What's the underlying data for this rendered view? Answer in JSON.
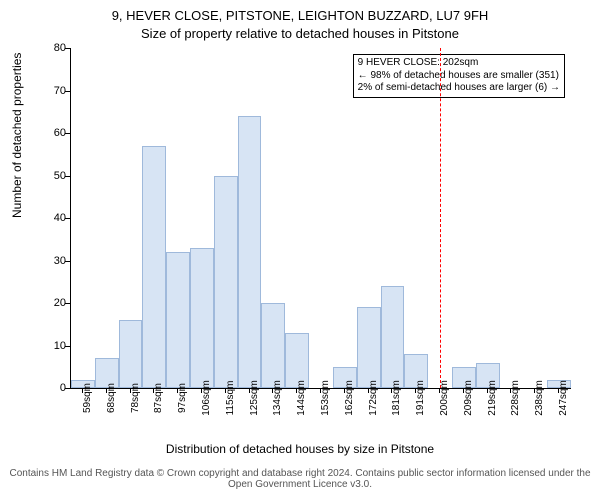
{
  "title_line1": "9, HEVER CLOSE, PITSTONE, LEIGHTON BUZZARD, LU7 9FH",
  "title_line2": "Size of property relative to detached houses in Pitstone",
  "y_axis_label": "Number of detached properties",
  "x_axis_label": "Distribution of detached houses by size in Pitstone",
  "footer": "Contains HM Land Registry data © Crown copyright and database right 2024. Contains public sector information licensed under the Open Government Licence v3.0.",
  "chart": {
    "type": "histogram",
    "background_color": "#ffffff",
    "bar_fill": "#d7e4f4",
    "bar_stroke": "#9fb9db",
    "axis_color": "#000000",
    "marker_color": "#ff0000",
    "ylim": [
      0,
      80
    ],
    "ytick_step": 10,
    "x_categories": [
      "59sqm",
      "68sqm",
      "78sqm",
      "87sqm",
      "97sqm",
      "106sqm",
      "115sqm",
      "125sqm",
      "134sqm",
      "144sqm",
      "153sqm",
      "162sqm",
      "172sqm",
      "181sqm",
      "191sqm",
      "200sqm",
      "209sqm",
      "219sqm",
      "228sqm",
      "238sqm",
      "247sqm"
    ],
    "values": [
      2,
      7,
      16,
      57,
      32,
      33,
      50,
      64,
      20,
      13,
      0,
      5,
      19,
      24,
      8,
      0,
      5,
      6,
      0,
      0,
      2
    ],
    "marker_index": 15,
    "annotation": {
      "lines": [
        "9 HEVER CLOSE: 202sqm",
        "← 98% of detached houses are smaller (351)",
        "2% of semi-detached houses are larger (6) →"
      ]
    }
  },
  "fontsize": {
    "title": 13,
    "axis_label": 12,
    "tick": 11,
    "xtick": 10,
    "annotation": 10,
    "footer": 10
  }
}
